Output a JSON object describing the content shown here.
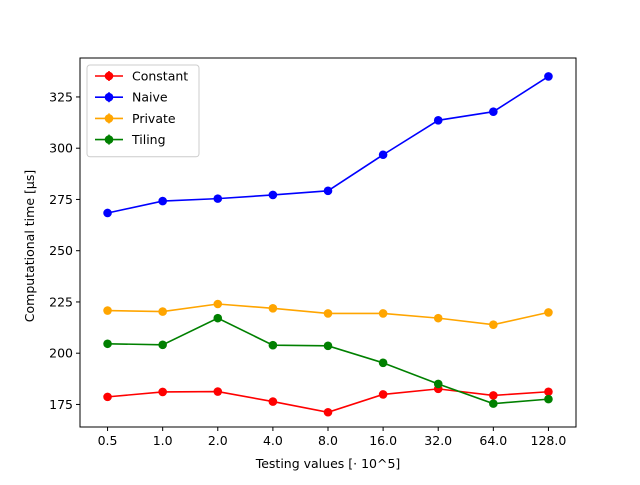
{
  "chart_data": {
    "type": "line",
    "title": "",
    "xlabel": "Testing values [· 10^5]",
    "ylabel": "Computational time [μs]",
    "categories": [
      "0.5",
      "1.0",
      "2.0",
      "4.0",
      "8.0",
      "16.0",
      "32.0",
      "64.0",
      "128.0"
    ],
    "ylim": [
      164,
      344
    ],
    "yticks": [
      175,
      200,
      225,
      250,
      275,
      300,
      325
    ],
    "grid": false,
    "legend_position": "top-left",
    "series": [
      {
        "name": "Constant",
        "color": "#ff0000",
        "values": [
          178.7,
          181.1,
          181.3,
          176.4,
          171.2,
          179.9,
          182.6,
          179.4,
          181.2
        ]
      },
      {
        "name": "Naive",
        "color": "#0000ff",
        "values": [
          268.4,
          274.2,
          275.4,
          277.2,
          279.2,
          296.8,
          313.6,
          317.8,
          335.0
        ]
      },
      {
        "name": "Private",
        "color": "#ffa500",
        "values": [
          220.8,
          220.3,
          224.0,
          221.9,
          219.4,
          219.4,
          217.1,
          213.9,
          219.9
        ]
      },
      {
        "name": "Tiling",
        "color": "#008000",
        "values": [
          204.6,
          204.1,
          217.1,
          203.9,
          203.6,
          195.3,
          185.0,
          175.4,
          177.6
        ]
      }
    ]
  }
}
